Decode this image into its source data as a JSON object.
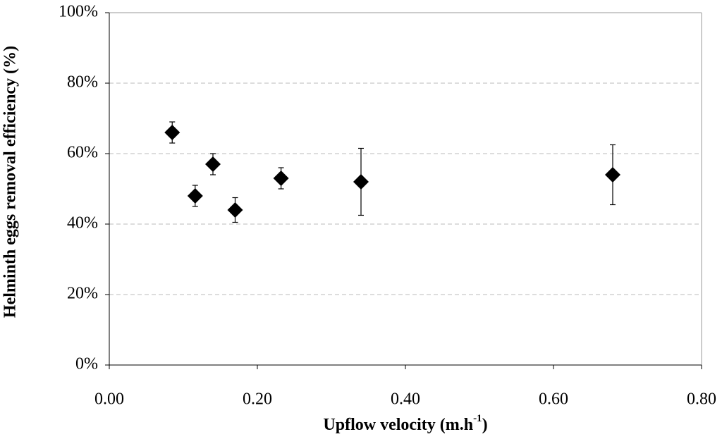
{
  "chart_data": {
    "type": "scatter",
    "x_label": {
      "text": "Upflow velocity  (m.h",
      "superscript": "-1",
      "suffix": ")"
    },
    "y_label": "Helminth eggs removal efficiency (%)",
    "x": [
      0.085,
      0.116,
      0.14,
      0.17,
      0.232,
      0.34,
      0.68
    ],
    "values": [
      66,
      48,
      57,
      44,
      53,
      52,
      54
    ],
    "errors": [
      3,
      3,
      3,
      3.5,
      3,
      9.5,
      8.5
    ],
    "color": "#000000",
    "xlim": [
      0,
      0.8
    ],
    "xticks": [
      {
        "value": 0,
        "label": "0.00"
      },
      {
        "value": 0.2,
        "label": "0.20"
      },
      {
        "value": 0.4,
        "label": "0.40"
      },
      {
        "value": 0.6,
        "label": "0.60"
      },
      {
        "value": 0.8,
        "label": "0.80"
      }
    ],
    "ylim": [
      0,
      100
    ],
    "yticks": [
      {
        "value": 0,
        "label": "0%"
      },
      {
        "value": 20,
        "label": "20%"
      },
      {
        "value": 40,
        "label": "40%"
      },
      {
        "value": 60,
        "label": "60%"
      },
      {
        "value": 80,
        "label": "80%"
      },
      {
        "value": 100,
        "label": "100%"
      }
    ],
    "grid": true
  }
}
